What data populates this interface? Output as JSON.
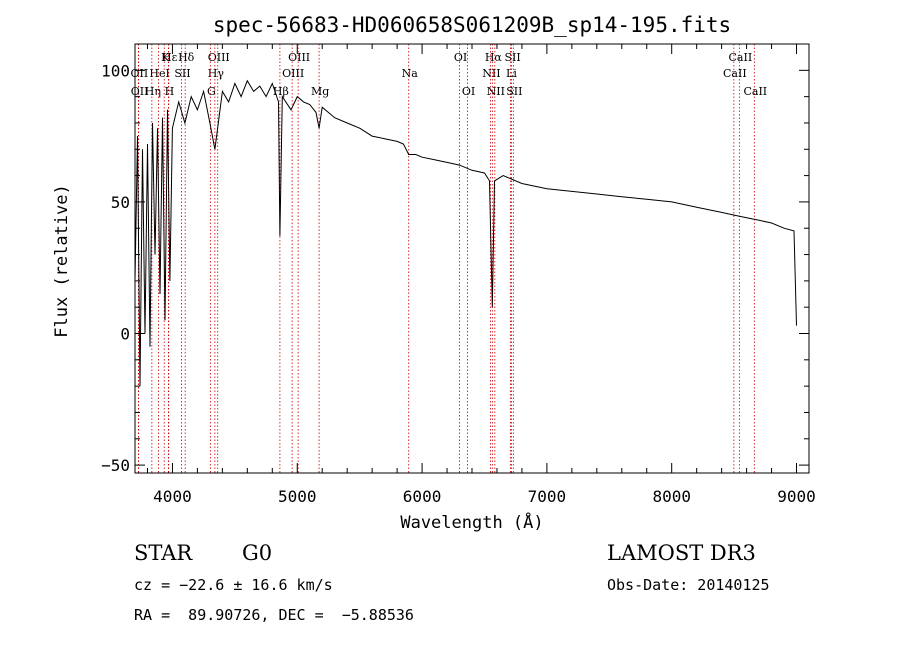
{
  "chart_data": {
    "type": "line",
    "title": "spec-56683-HD060658S061209B_sp14-195.fits",
    "xlabel": "Wavelength (Å)",
    "ylabel": "Flux (relative)",
    "xlim": [
      3700,
      9100
    ],
    "ylim": [
      -53,
      110
    ],
    "xticks": [
      4000,
      5000,
      6000,
      7000,
      8000,
      9000
    ],
    "xtick_labels": [
      "4000",
      "5000",
      "6000",
      "7000",
      "8000",
      "9000"
    ],
    "yticks": [
      -50,
      0,
      50,
      100
    ],
    "ytick_labels": [
      "−50",
      "0",
      "50",
      "100"
    ],
    "grid": false,
    "series": [
      {
        "name": "flux",
        "x": [
          3700,
          3720,
          3740,
          3760,
          3780,
          3800,
          3820,
          3840,
          3860,
          3880,
          3900,
          3920,
          3940,
          3960,
          3980,
          4000,
          4050,
          4100,
          4150,
          4200,
          4250,
          4300,
          4340,
          4400,
          4450,
          4500,
          4550,
          4600,
          4650,
          4700,
          4750,
          4800,
          4850,
          4861,
          4880,
          4950,
          5000,
          5050,
          5100,
          5150,
          5175,
          5200,
          5300,
          5400,
          5500,
          5600,
          5700,
          5800,
          5850,
          5893,
          5950,
          6000,
          6100,
          6200,
          6300,
          6400,
          6500,
          6540,
          6563,
          6580,
          6650,
          6700,
          6800,
          6900,
          7000,
          7200,
          7400,
          7600,
          7800,
          8000,
          8200,
          8400,
          8500,
          8600,
          8700,
          8800,
          8900,
          8980,
          9000
        ],
        "y": [
          20,
          75,
          -20,
          70,
          0,
          72,
          -5,
          80,
          30,
          78,
          15,
          82,
          5,
          85,
          20,
          78,
          88,
          80,
          90,
          85,
          92,
          80,
          70,
          92,
          88,
          95,
          90,
          96,
          92,
          94,
          90,
          95,
          88,
          37,
          90,
          85,
          90,
          88,
          87,
          84,
          78,
          86,
          82,
          80,
          78,
          75,
          74,
          73,
          72,
          68,
          68,
          67,
          66,
          65,
          64,
          62,
          61,
          58,
          10,
          58,
          60,
          59,
          57,
          56,
          55,
          54,
          53,
          52,
          51,
          50,
          48,
          46,
          45,
          44,
          43,
          42,
          40,
          39,
          3
        ]
      }
    ],
    "line_markers": [
      {
        "label": "Hε",
        "wavelength": 3970,
        "row": 1
      },
      {
        "label": "K",
        "wavelength": 3934,
        "row": 1
      },
      {
        "label": "Hδ",
        "wavelength": 4102,
        "row": 1
      },
      {
        "label": "OIII",
        "wavelength": 4363,
        "row": 1
      },
      {
        "label": "OIII",
        "wavelength": 5007,
        "row": 1
      },
      {
        "label": "OI",
        "wavelength": 6300,
        "row": 1
      },
      {
        "label": "Hα",
        "wavelength": 6563,
        "row": 1
      },
      {
        "label": "SII",
        "wavelength": 6717,
        "row": 1
      },
      {
        "label": "CaII",
        "wavelength": 8542,
        "row": 1
      },
      {
        "label": "OII",
        "wavelength": 3727,
        "row": 2
      },
      {
        "label": "HeI",
        "wavelength": 3889,
        "row": 2
      },
      {
        "label": "SII",
        "wavelength": 4072,
        "row": 2
      },
      {
        "label": "Hγ",
        "wavelength": 4340,
        "row": 2
      },
      {
        "label": "OIII",
        "wavelength": 4959,
        "row": 2
      },
      {
        "label": "Na",
        "wavelength": 5893,
        "row": 2
      },
      {
        "label": "NII",
        "wavelength": 6548,
        "row": 2
      },
      {
        "label": "Li",
        "wavelength": 6708,
        "row": 2
      },
      {
        "label": "CaII",
        "wavelength": 8498,
        "row": 2
      },
      {
        "label": "OII",
        "wavelength": 3729,
        "row": 3
      },
      {
        "label": "Hη",
        "wavelength": 3835,
        "row": 3
      },
      {
        "label": "H",
        "wavelength": 3968,
        "row": 3
      },
      {
        "label": "G",
        "wavelength": 4304,
        "row": 3
      },
      {
        "label": "Hβ",
        "wavelength": 4861,
        "row": 3
      },
      {
        "label": "Mg",
        "wavelength": 5175,
        "row": 3
      },
      {
        "label": "OI",
        "wavelength": 6364,
        "row": 3
      },
      {
        "label": "NII",
        "wavelength": 6583,
        "row": 3
      },
      {
        "label": "SII",
        "wavelength": 6731,
        "row": 3
      },
      {
        "label": "CaII",
        "wavelength": 8662,
        "row": 3
      }
    ]
  },
  "info": {
    "object_type": "STAR",
    "subclass": "G0",
    "survey": "LAMOST DR3",
    "redshift": "cz = −22.6 ± 16.6 km/s",
    "obs_date": "Obs-Date: 20140125",
    "coords": "RA =  89.90726, DEC =  −5.88536"
  },
  "colors": {
    "spectrum": "#000000",
    "marker_line": "#cc0000",
    "axes": "#000000",
    "background": "#ffffff"
  }
}
